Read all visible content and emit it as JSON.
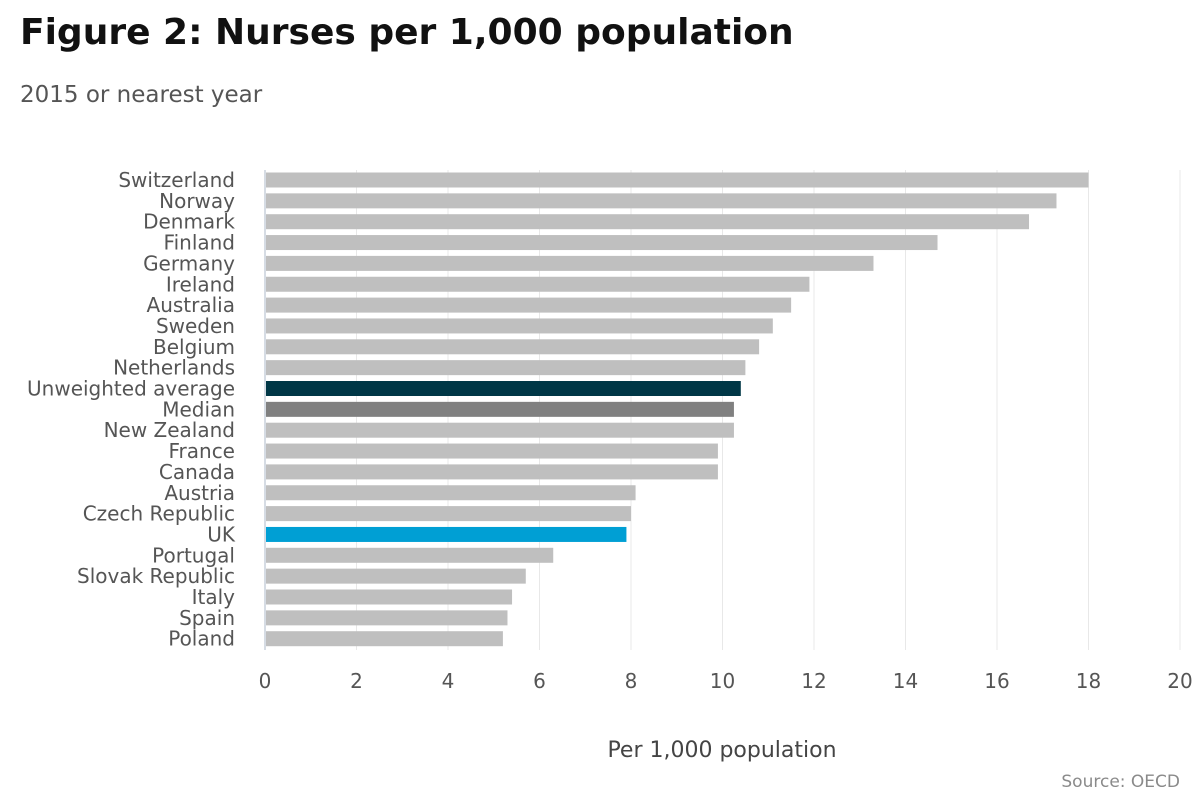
{
  "chart_data": {
    "type": "bar",
    "orientation": "horizontal",
    "title": "Figure 2: Nurses per 1,000 population",
    "subtitle": "2015 or nearest year",
    "xlabel": "Per 1,000 population",
    "ylabel": "",
    "source": "Source: OECD",
    "xlim": [
      0,
      20
    ],
    "xticks": [
      0,
      2,
      4,
      6,
      8,
      10,
      12,
      14,
      16,
      18,
      20
    ],
    "grid": "vertical",
    "legend": "none",
    "categories": [
      "Switzerland",
      "Norway",
      "Denmark",
      "Finland",
      "Germany",
      "Ireland",
      "Australia",
      "Sweden",
      "Belgium",
      "Netherlands",
      "Unweighted average",
      "Median",
      "New Zealand",
      "France",
      "Canada",
      "Austria",
      "Czech Republic",
      "UK",
      "Portugal",
      "Slovak Republic",
      "Italy",
      "Spain",
      "Poland"
    ],
    "values": [
      18.0,
      17.3,
      16.7,
      14.7,
      13.3,
      11.9,
      11.5,
      11.1,
      10.8,
      10.5,
      10.4,
      10.25,
      10.25,
      9.9,
      9.9,
      8.1,
      8.0,
      7.9,
      6.3,
      5.7,
      5.4,
      5.3,
      5.2
    ],
    "colors": {
      "default": "#bfbfbf",
      "Unweighted average": "#003746",
      "Median": "#808080",
      "UK": "#009fd4",
      "grid": "#e8e8e8",
      "axis": "#c8d0dc"
    }
  }
}
